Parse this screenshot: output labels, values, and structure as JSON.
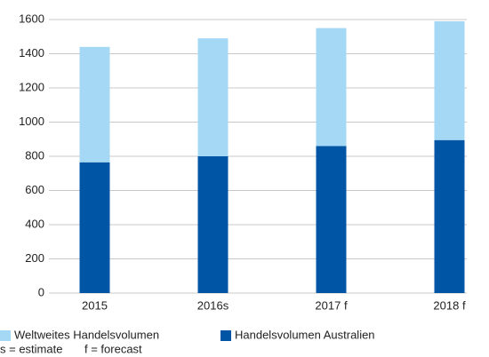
{
  "chart_data": {
    "type": "bar",
    "stacked": true,
    "categories": [
      "2015",
      "2016s",
      "2017 f",
      "2018 f"
    ],
    "series": [
      {
        "name": "Weltweites Handelsvolumen",
        "color": "#a5d8f5",
        "values": [
          675,
          690,
          690,
          695
        ]
      },
      {
        "name": "Handelsvolumen Australien",
        "color": "#0055a4",
        "values": [
          765,
          800,
          860,
          895
        ]
      }
    ],
    "ylim": [
      0,
      1600
    ],
    "yticks": [
      0,
      200,
      400,
      600,
      800,
      1000,
      1200,
      1400,
      1600
    ],
    "grid": true,
    "notes": [
      "s = estimate",
      "f = forecast"
    ]
  }
}
